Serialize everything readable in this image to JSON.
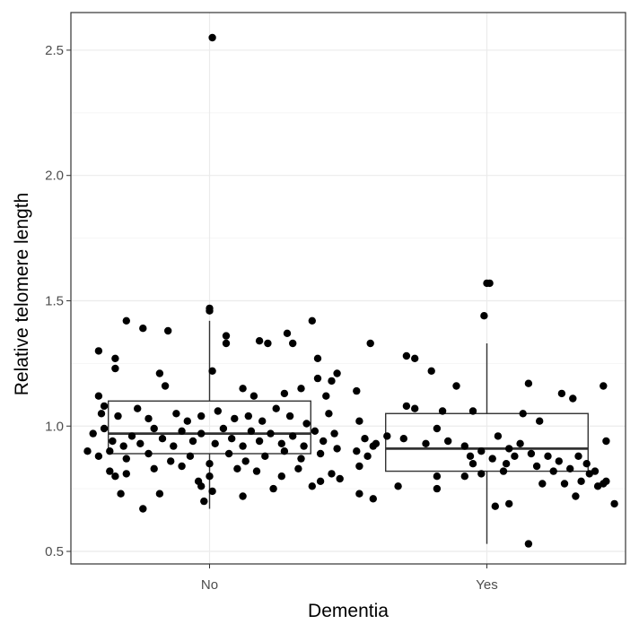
{
  "chart_data": {
    "type": "box",
    "title": "",
    "xlabel": "Dementia",
    "ylabel": "Relative telomere length",
    "categories": [
      "No",
      "Yes"
    ],
    "ylim": [
      0.45,
      2.65
    ],
    "yticks": [
      0.5,
      1.0,
      1.5,
      2.0,
      2.5
    ],
    "ytick_labels": [
      "0.5",
      "1.0",
      "1.5",
      "2.0",
      "2.5"
    ],
    "grid": true,
    "colors": {
      "points": "#000000",
      "box": "#333333",
      "grid": "#ebebeb",
      "panel_border": "#333333"
    },
    "boxes": [
      {
        "category": "No",
        "q1": 0.89,
        "median": 0.97,
        "q3": 1.1,
        "whisker_low": 0.67,
        "whisker_high": 1.42
      },
      {
        "category": "Yes",
        "q1": 0.82,
        "median": 0.91,
        "q3": 1.05,
        "whisker_low": 0.53,
        "whisker_high": 1.33
      }
    ],
    "points": [
      {
        "category": "No",
        "x": 0.01,
        "y": 2.55
      },
      {
        "category": "No",
        "x": 0.0,
        "y": 1.46
      },
      {
        "category": "No",
        "x": 0.0,
        "y": 1.47
      },
      {
        "category": "No",
        "x": -0.3,
        "y": 1.42
      },
      {
        "category": "No",
        "x": -0.24,
        "y": 1.39
      },
      {
        "category": "No",
        "x": -0.15,
        "y": 1.38
      },
      {
        "category": "No",
        "x": 0.06,
        "y": 1.36
      },
      {
        "category": "No",
        "x": 0.06,
        "y": 1.33
      },
      {
        "category": "No",
        "x": 0.18,
        "y": 1.34
      },
      {
        "category": "No",
        "x": 0.21,
        "y": 1.33
      },
      {
        "category": "No",
        "x": 0.28,
        "y": 1.37
      },
      {
        "category": "No",
        "x": 0.37,
        "y": 1.42
      },
      {
        "category": "No",
        "x": -0.4,
        "y": 1.3
      },
      {
        "category": "No",
        "x": -0.34,
        "y": 1.27
      },
      {
        "category": "No",
        "x": -0.34,
        "y": 1.23
      },
      {
        "category": "No",
        "x": -0.18,
        "y": 1.21
      },
      {
        "category": "No",
        "x": 0.01,
        "y": 1.22
      },
      {
        "category": "No",
        "x": 0.3,
        "y": 1.33
      },
      {
        "category": "No",
        "x": 0.39,
        "y": 1.27
      },
      {
        "category": "No",
        "x": 0.44,
        "y": 1.18
      },
      {
        "category": "No",
        "x": 0.46,
        "y": 1.21
      },
      {
        "category": "No",
        "x": -0.4,
        "y": 1.12
      },
      {
        "category": "No",
        "x": -0.38,
        "y": 1.08
      },
      {
        "category": "No",
        "x": -0.16,
        "y": 1.16
      },
      {
        "category": "No",
        "x": 0.12,
        "y": 1.15
      },
      {
        "category": "No",
        "x": 0.16,
        "y": 1.12
      },
      {
        "category": "No",
        "x": 0.27,
        "y": 1.13
      },
      {
        "category": "No",
        "x": 0.33,
        "y": 1.15
      },
      {
        "category": "No",
        "x": 0.39,
        "y": 1.19
      },
      {
        "category": "No",
        "x": 0.42,
        "y": 1.12
      },
      {
        "category": "No",
        "x": -0.39,
        "y": 1.05
      },
      {
        "category": "No",
        "x": -0.33,
        "y": 1.04
      },
      {
        "category": "No",
        "x": -0.26,
        "y": 1.07
      },
      {
        "category": "No",
        "x": -0.22,
        "y": 1.03
      },
      {
        "category": "No",
        "x": -0.12,
        "y": 1.05
      },
      {
        "category": "No",
        "x": -0.08,
        "y": 1.02
      },
      {
        "category": "No",
        "x": -0.03,
        "y": 1.04
      },
      {
        "category": "No",
        "x": 0.03,
        "y": 1.06
      },
      {
        "category": "No",
        "x": 0.09,
        "y": 1.03
      },
      {
        "category": "No",
        "x": 0.14,
        "y": 1.04
      },
      {
        "category": "No",
        "x": 0.19,
        "y": 1.02
      },
      {
        "category": "No",
        "x": 0.24,
        "y": 1.07
      },
      {
        "category": "No",
        "x": 0.29,
        "y": 1.04
      },
      {
        "category": "No",
        "x": 0.35,
        "y": 1.01
      },
      {
        "category": "No",
        "x": 0.43,
        "y": 1.05
      },
      {
        "category": "No",
        "x": -0.42,
        "y": 0.97
      },
      {
        "category": "No",
        "x": -0.38,
        "y": 0.99
      },
      {
        "category": "No",
        "x": -0.35,
        "y": 0.94
      },
      {
        "category": "No",
        "x": -0.31,
        "y": 0.92
      },
      {
        "category": "No",
        "x": -0.28,
        "y": 0.96
      },
      {
        "category": "No",
        "x": -0.25,
        "y": 0.93
      },
      {
        "category": "No",
        "x": -0.2,
        "y": 0.99
      },
      {
        "category": "No",
        "x": -0.17,
        "y": 0.95
      },
      {
        "category": "No",
        "x": -0.13,
        "y": 0.92
      },
      {
        "category": "No",
        "x": -0.1,
        "y": 0.98
      },
      {
        "category": "No",
        "x": -0.06,
        "y": 0.94
      },
      {
        "category": "No",
        "x": -0.03,
        "y": 0.97
      },
      {
        "category": "No",
        "x": 0.02,
        "y": 0.93
      },
      {
        "category": "No",
        "x": 0.05,
        "y": 0.99
      },
      {
        "category": "No",
        "x": 0.08,
        "y": 0.95
      },
      {
        "category": "No",
        "x": 0.12,
        "y": 0.92
      },
      {
        "category": "No",
        "x": 0.15,
        "y": 0.98
      },
      {
        "category": "No",
        "x": 0.18,
        "y": 0.94
      },
      {
        "category": "No",
        "x": 0.22,
        "y": 0.97
      },
      {
        "category": "No",
        "x": 0.26,
        "y": 0.93
      },
      {
        "category": "No",
        "x": 0.3,
        "y": 0.96
      },
      {
        "category": "No",
        "x": 0.34,
        "y": 0.92
      },
      {
        "category": "No",
        "x": 0.38,
        "y": 0.98
      },
      {
        "category": "No",
        "x": 0.41,
        "y": 0.94
      },
      {
        "category": "No",
        "x": 0.45,
        "y": 0.97
      },
      {
        "category": "No",
        "x": -0.44,
        "y": 0.9
      },
      {
        "category": "No",
        "x": -0.4,
        "y": 0.88
      },
      {
        "category": "No",
        "x": -0.36,
        "y": 0.9
      },
      {
        "category": "No",
        "x": -0.3,
        "y": 0.87
      },
      {
        "category": "No",
        "x": -0.22,
        "y": 0.89
      },
      {
        "category": "No",
        "x": -0.14,
        "y": 0.86
      },
      {
        "category": "No",
        "x": -0.07,
        "y": 0.88
      },
      {
        "category": "No",
        "x": 0.0,
        "y": 0.85
      },
      {
        "category": "No",
        "x": 0.07,
        "y": 0.89
      },
      {
        "category": "No",
        "x": 0.13,
        "y": 0.86
      },
      {
        "category": "No",
        "x": 0.2,
        "y": 0.88
      },
      {
        "category": "No",
        "x": 0.27,
        "y": 0.9
      },
      {
        "category": "No",
        "x": 0.33,
        "y": 0.87
      },
      {
        "category": "No",
        "x": 0.4,
        "y": 0.89
      },
      {
        "category": "No",
        "x": 0.46,
        "y": 0.91
      },
      {
        "category": "No",
        "x": -0.36,
        "y": 0.82
      },
      {
        "category": "No",
        "x": -0.34,
        "y": 0.8
      },
      {
        "category": "No",
        "x": -0.3,
        "y": 0.81
      },
      {
        "category": "No",
        "x": -0.2,
        "y": 0.83
      },
      {
        "category": "No",
        "x": -0.1,
        "y": 0.84
      },
      {
        "category": "No",
        "x": -0.04,
        "y": 0.78
      },
      {
        "category": "No",
        "x": 0.0,
        "y": 0.8
      },
      {
        "category": "No",
        "x": 0.1,
        "y": 0.83
      },
      {
        "category": "No",
        "x": 0.17,
        "y": 0.82
      },
      {
        "category": "No",
        "x": 0.26,
        "y": 0.8
      },
      {
        "category": "No",
        "x": 0.32,
        "y": 0.83
      },
      {
        "category": "No",
        "x": 0.4,
        "y": 0.78
      },
      {
        "category": "No",
        "x": 0.44,
        "y": 0.81
      },
      {
        "category": "No",
        "x": 0.47,
        "y": 0.79
      },
      {
        "category": "No",
        "x": -0.32,
        "y": 0.73
      },
      {
        "category": "No",
        "x": -0.18,
        "y": 0.73
      },
      {
        "category": "No",
        "x": -0.03,
        "y": 0.76
      },
      {
        "category": "No",
        "x": -0.02,
        "y": 0.7
      },
      {
        "category": "No",
        "x": 0.01,
        "y": 0.74
      },
      {
        "category": "No",
        "x": 0.12,
        "y": 0.72
      },
      {
        "category": "No",
        "x": 0.23,
        "y": 0.75
      },
      {
        "category": "No",
        "x": 0.37,
        "y": 0.76
      },
      {
        "category": "No",
        "x": -0.24,
        "y": 0.67
      },
      {
        "category": "Yes",
        "x": 0.0,
        "y": 1.57
      },
      {
        "category": "Yes",
        "x": 0.01,
        "y": 1.57
      },
      {
        "category": "Yes",
        "x": -0.01,
        "y": 1.44
      },
      {
        "category": "Yes",
        "x": -0.42,
        "y": 1.33
      },
      {
        "category": "Yes",
        "x": -0.29,
        "y": 1.28
      },
      {
        "category": "Yes",
        "x": -0.26,
        "y": 1.27
      },
      {
        "category": "Yes",
        "x": -0.2,
        "y": 1.22
      },
      {
        "category": "Yes",
        "x": -0.11,
        "y": 1.16
      },
      {
        "category": "Yes",
        "x": 0.15,
        "y": 1.17
      },
      {
        "category": "Yes",
        "x": 0.27,
        "y": 1.13
      },
      {
        "category": "Yes",
        "x": 0.31,
        "y": 1.11
      },
      {
        "category": "Yes",
        "x": 0.42,
        "y": 1.16
      },
      {
        "category": "Yes",
        "x": -0.47,
        "y": 1.14
      },
      {
        "category": "Yes",
        "x": -0.29,
        "y": 1.08
      },
      {
        "category": "Yes",
        "x": -0.26,
        "y": 1.07
      },
      {
        "category": "Yes",
        "x": -0.16,
        "y": 1.06
      },
      {
        "category": "Yes",
        "x": -0.05,
        "y": 1.06
      },
      {
        "category": "Yes",
        "x": 0.13,
        "y": 1.05
      },
      {
        "category": "Yes",
        "x": 0.19,
        "y": 1.02
      },
      {
        "category": "Yes",
        "x": -0.46,
        "y": 1.02
      },
      {
        "category": "Yes",
        "x": -0.18,
        "y": 0.99
      },
      {
        "category": "Yes",
        "x": -0.44,
        "y": 0.95
      },
      {
        "category": "Yes",
        "x": -0.4,
        "y": 0.93
      },
      {
        "category": "Yes",
        "x": -0.36,
        "y": 0.96
      },
      {
        "category": "Yes",
        "x": -0.3,
        "y": 0.95
      },
      {
        "category": "Yes",
        "x": -0.22,
        "y": 0.93
      },
      {
        "category": "Yes",
        "x": -0.14,
        "y": 0.94
      },
      {
        "category": "Yes",
        "x": -0.08,
        "y": 0.92
      },
      {
        "category": "Yes",
        "x": -0.02,
        "y": 0.9
      },
      {
        "category": "Yes",
        "x": 0.04,
        "y": 0.96
      },
      {
        "category": "Yes",
        "x": 0.08,
        "y": 0.91
      },
      {
        "category": "Yes",
        "x": 0.12,
        "y": 0.93
      },
      {
        "category": "Yes",
        "x": 0.16,
        "y": 0.89
      },
      {
        "category": "Yes",
        "x": 0.22,
        "y": 0.88
      },
      {
        "category": "Yes",
        "x": 0.26,
        "y": 0.86
      },
      {
        "category": "Yes",
        "x": 0.33,
        "y": 0.88
      },
      {
        "category": "Yes",
        "x": 0.43,
        "y": 0.94
      },
      {
        "category": "Yes",
        "x": -0.47,
        "y": 0.9
      },
      {
        "category": "Yes",
        "x": -0.43,
        "y": 0.88
      },
      {
        "category": "Yes",
        "x": -0.41,
        "y": 0.92
      },
      {
        "category": "Yes",
        "x": -0.06,
        "y": 0.88
      },
      {
        "category": "Yes",
        "x": 0.02,
        "y": 0.87
      },
      {
        "category": "Yes",
        "x": 0.07,
        "y": 0.85
      },
      {
        "category": "Yes",
        "x": 0.1,
        "y": 0.88
      },
      {
        "category": "Yes",
        "x": 0.18,
        "y": 0.84
      },
      {
        "category": "Yes",
        "x": 0.24,
        "y": 0.82
      },
      {
        "category": "Yes",
        "x": 0.3,
        "y": 0.83
      },
      {
        "category": "Yes",
        "x": 0.36,
        "y": 0.85
      },
      {
        "category": "Yes",
        "x": -0.46,
        "y": 0.84
      },
      {
        "category": "Yes",
        "x": -0.18,
        "y": 0.8
      },
      {
        "category": "Yes",
        "x": -0.05,
        "y": 0.85
      },
      {
        "category": "Yes",
        "x": -0.02,
        "y": 0.81
      },
      {
        "category": "Yes",
        "x": 0.06,
        "y": 0.82
      },
      {
        "category": "Yes",
        "x": 0.28,
        "y": 0.77
      },
      {
        "category": "Yes",
        "x": 0.34,
        "y": 0.78
      },
      {
        "category": "Yes",
        "x": 0.37,
        "y": 0.81
      },
      {
        "category": "Yes",
        "x": 0.39,
        "y": 0.82
      },
      {
        "category": "Yes",
        "x": 0.4,
        "y": 0.76
      },
      {
        "category": "Yes",
        "x": 0.42,
        "y": 0.77
      },
      {
        "category": "Yes",
        "x": 0.43,
        "y": 0.78
      },
      {
        "category": "Yes",
        "x": 0.46,
        "y": 0.69
      },
      {
        "category": "Yes",
        "x": 0.2,
        "y": 0.77
      },
      {
        "category": "Yes",
        "x": 0.32,
        "y": 0.72
      },
      {
        "category": "Yes",
        "x": -0.46,
        "y": 0.73
      },
      {
        "category": "Yes",
        "x": -0.41,
        "y": 0.71
      },
      {
        "category": "Yes",
        "x": -0.32,
        "y": 0.76
      },
      {
        "category": "Yes",
        "x": -0.18,
        "y": 0.75
      },
      {
        "category": "Yes",
        "x": -0.08,
        "y": 0.8
      },
      {
        "category": "Yes",
        "x": 0.03,
        "y": 0.68
      },
      {
        "category": "Yes",
        "x": 0.08,
        "y": 0.69
      },
      {
        "category": "Yes",
        "x": 0.15,
        "y": 0.53
      }
    ]
  }
}
